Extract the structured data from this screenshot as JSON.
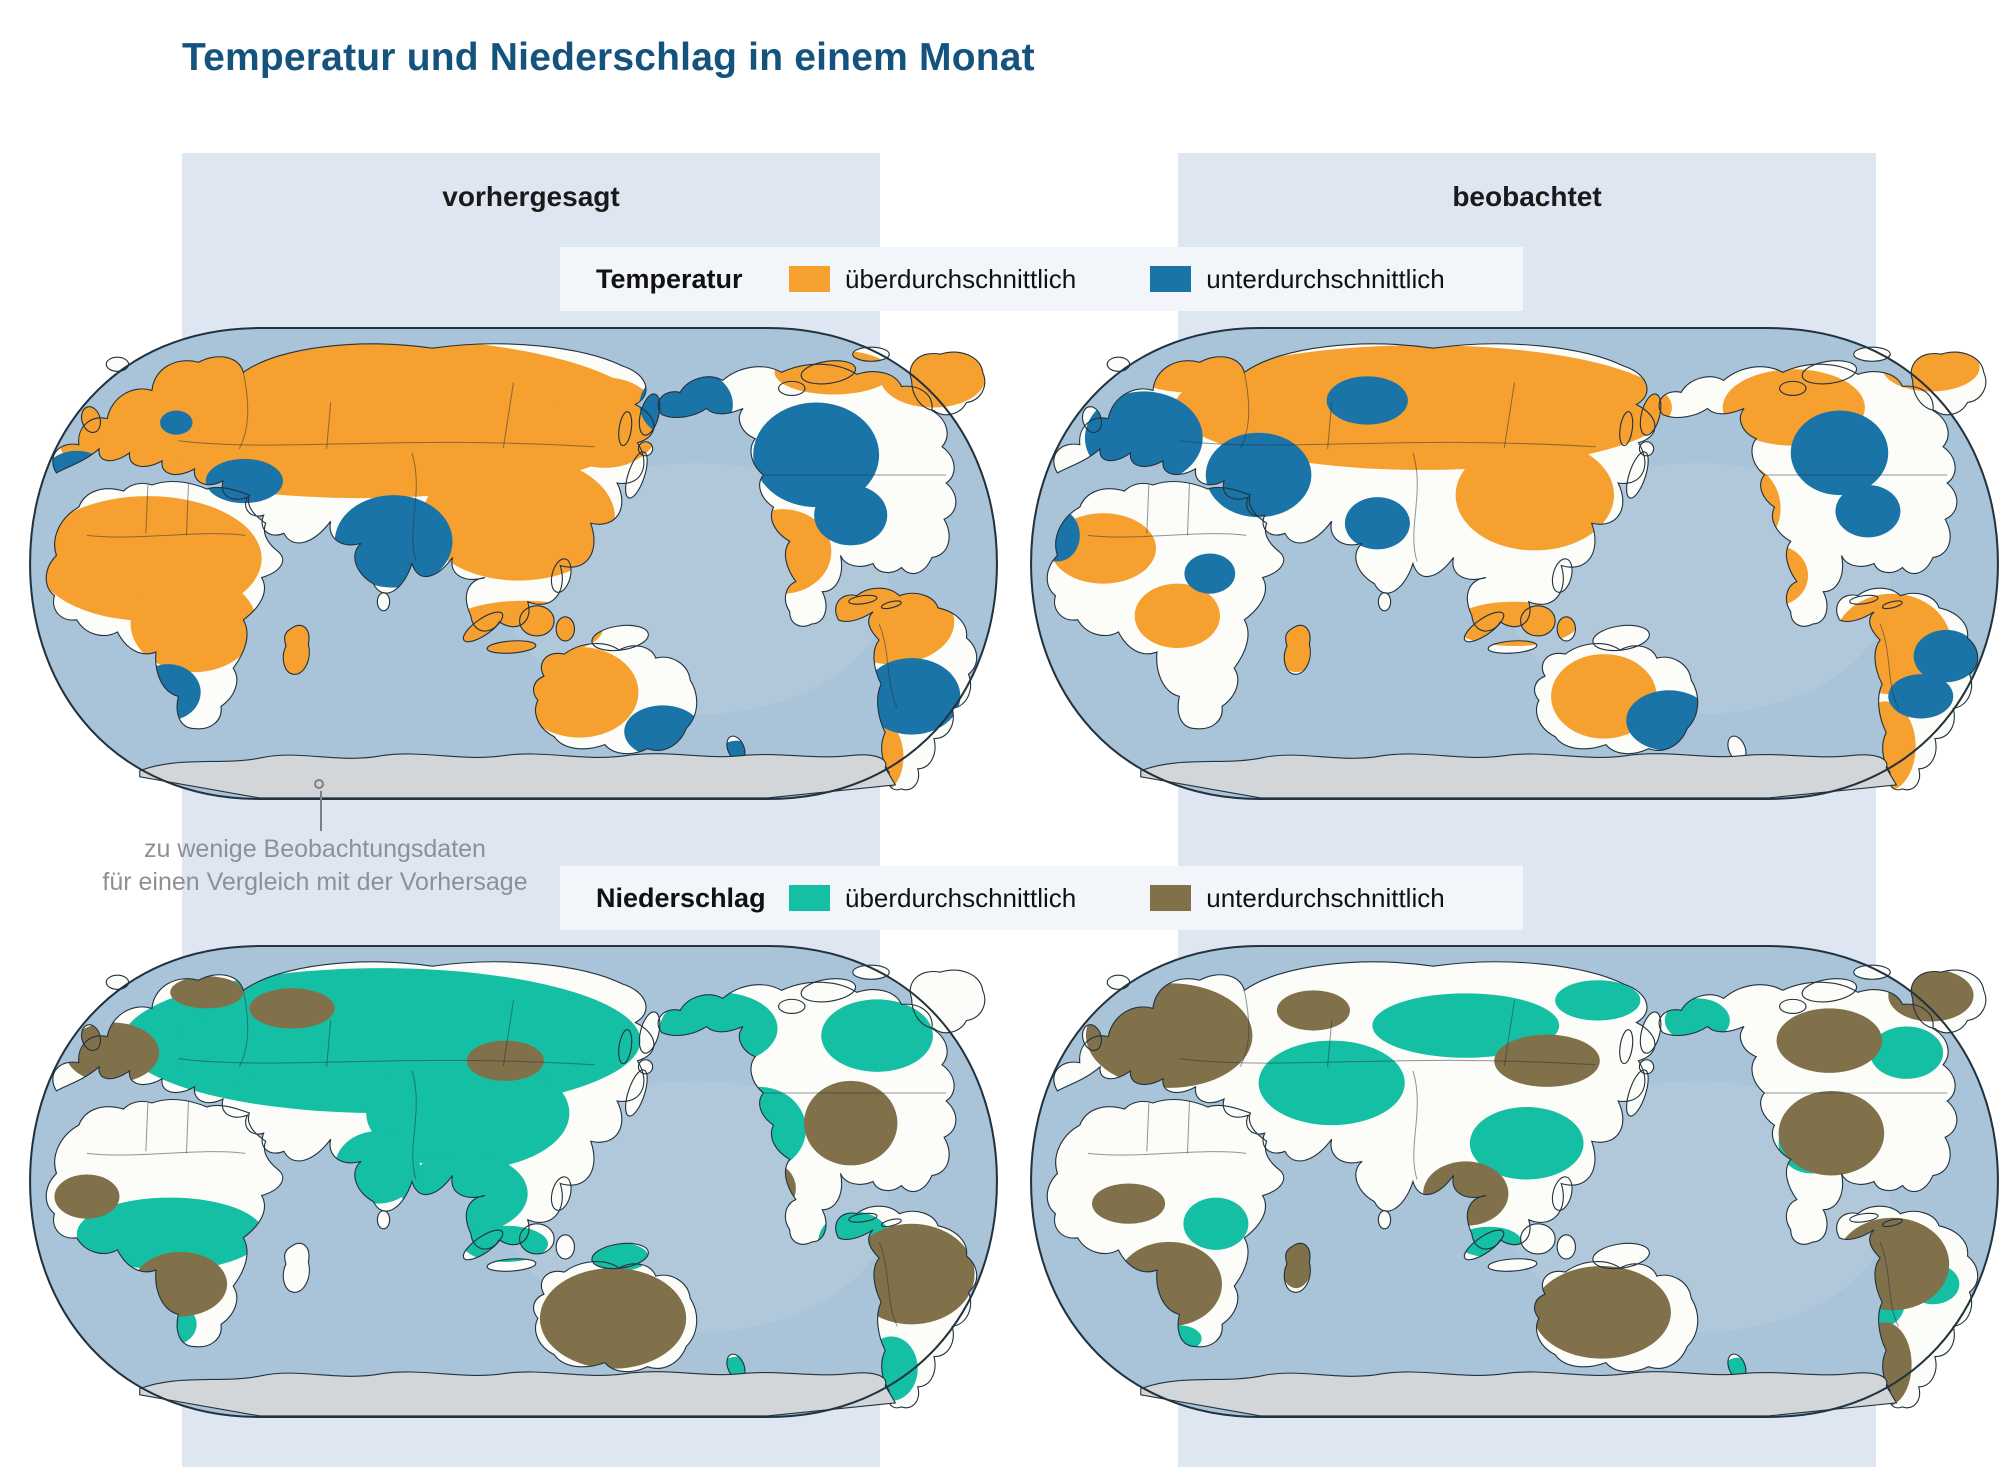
{
  "title": "Temperatur und Niederschlag in einem Monat",
  "column_headers": {
    "predicted": "vorhergesagt",
    "observed": "beobachtet"
  },
  "legends": {
    "temperature": {
      "category": "Temperatur",
      "above_label": "überdurchschnittlich",
      "below_label": "unterdurchschnittlich",
      "above_color": "#F6A02F",
      "below_color": "#1B74A8"
    },
    "precipitation": {
      "category": "Niederschlag",
      "above_label": "überdurchschnittlich",
      "below_label": "unterdurchschnittlich",
      "above_color": "#15BFA3",
      "below_color": "#80714A"
    }
  },
  "annotation": {
    "line1": "zu wenige Beobachtungsdaten",
    "line2": "für einen Vergleich mit der Vorhersage"
  },
  "maps": [
    {
      "id": "temp-predicted",
      "variable": "Temperatur",
      "column": "vorhergesagt"
    },
    {
      "id": "temp-observed",
      "variable": "Temperatur",
      "column": "beobachtet"
    },
    {
      "id": "precip-predicted",
      "variable": "Niederschlag",
      "column": "vorhergesagt"
    },
    {
      "id": "precip-observed",
      "variable": "Niederschlag",
      "column": "beobachtet"
    }
  ],
  "colors": {
    "title_text": "#14537E",
    "panel": "#DEE6F2",
    "legend_bar": "#F2F6FA",
    "ocean": "#A9C3D8",
    "ocean_light": "#BACFDF",
    "land": "#FCFCF8",
    "antarctica": "#D3D6D9",
    "coastline": "#22323E",
    "annotation_text": "#8B9196",
    "leader": "#7A8084"
  }
}
